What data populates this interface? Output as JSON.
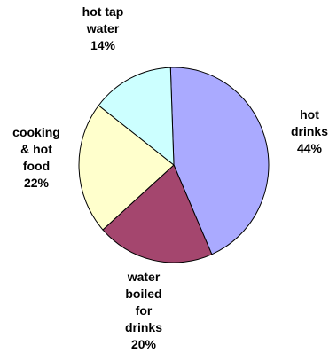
{
  "chart_data": {
    "type": "pie",
    "slices": [
      {
        "label": [
          "hot",
          "drinks"
        ],
        "value": 44,
        "value_label": "44%",
        "color": "#aaaaff"
      },
      {
        "label": [
          "water",
          "boiled",
          "for",
          "drinks"
        ],
        "value": 20,
        "value_label": "20%",
        "color": "#a4466e"
      },
      {
        "label": [
          "cooking",
          "& hot",
          "food"
        ],
        "value": 22,
        "value_label": "22%",
        "color": "#ffffcc"
      },
      {
        "label": [
          "hot tap",
          "water"
        ],
        "value": 14,
        "value_label": "14%",
        "color": "#ccffff"
      }
    ]
  }
}
